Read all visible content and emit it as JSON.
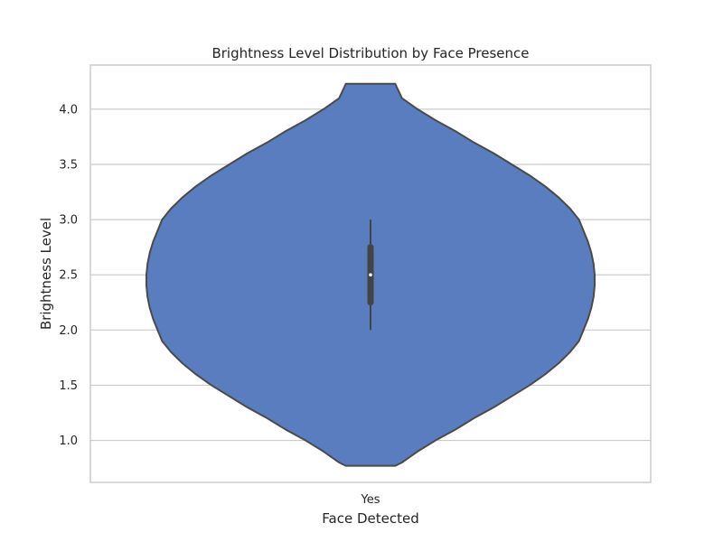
{
  "chart_data": {
    "type": "violin",
    "title": "Brightness Level Distribution by Face Presence",
    "xlabel": "Face Detected",
    "ylabel": "Brightness Level",
    "categories": [
      "Yes"
    ],
    "ylim": [
      0.62,
      4.4
    ],
    "yticks": [
      1.0,
      1.5,
      2.0,
      2.5,
      3.0,
      3.5,
      4.0
    ],
    "ytick_labels": [
      "1.0",
      "1.5",
      "2.0",
      "2.5",
      "3.0",
      "3.5",
      "4.0"
    ],
    "grid": "horizontal",
    "violins": [
      {
        "category": "Yes",
        "data_min": 2.0,
        "q1": 2.25,
        "median": 2.5,
        "q3": 2.75,
        "data_max": 3.0,
        "kde_min": 0.77,
        "kde_max": 4.23,
        "density_profile": [
          [
            0.77,
            0.11
          ],
          [
            0.8,
            0.14
          ],
          [
            0.9,
            0.21
          ],
          [
            1.0,
            0.29
          ],
          [
            1.1,
            0.38
          ],
          [
            1.2,
            0.46
          ],
          [
            1.3,
            0.55
          ],
          [
            1.4,
            0.63
          ],
          [
            1.5,
            0.71
          ],
          [
            1.6,
            0.78
          ],
          [
            1.7,
            0.84
          ],
          [
            1.8,
            0.89
          ],
          [
            1.9,
            0.93
          ],
          [
            2.0,
            0.95
          ],
          [
            2.1,
            0.97
          ],
          [
            2.2,
            0.985
          ],
          [
            2.3,
            0.995
          ],
          [
            2.4,
            1.0
          ],
          [
            2.5,
            1.0
          ],
          [
            2.6,
            0.995
          ],
          [
            2.7,
            0.985
          ],
          [
            2.8,
            0.97
          ],
          [
            2.9,
            0.95
          ],
          [
            3.0,
            0.93
          ],
          [
            3.1,
            0.89
          ],
          [
            3.2,
            0.84
          ],
          [
            3.3,
            0.78
          ],
          [
            3.4,
            0.71
          ],
          [
            3.5,
            0.63
          ],
          [
            3.6,
            0.55
          ],
          [
            3.7,
            0.46
          ],
          [
            3.8,
            0.38
          ],
          [
            3.9,
            0.29
          ],
          [
            4.0,
            0.21
          ],
          [
            4.1,
            0.14
          ],
          [
            4.23,
            0.11
          ]
        ]
      }
    ],
    "colors": {
      "violin_fill": "#5a7dc0",
      "violin_edge": "#4a4a4a",
      "box": "#444444",
      "median_dot": "#ffffff",
      "grid": "#cccccc",
      "frame": "#cccccc"
    }
  }
}
